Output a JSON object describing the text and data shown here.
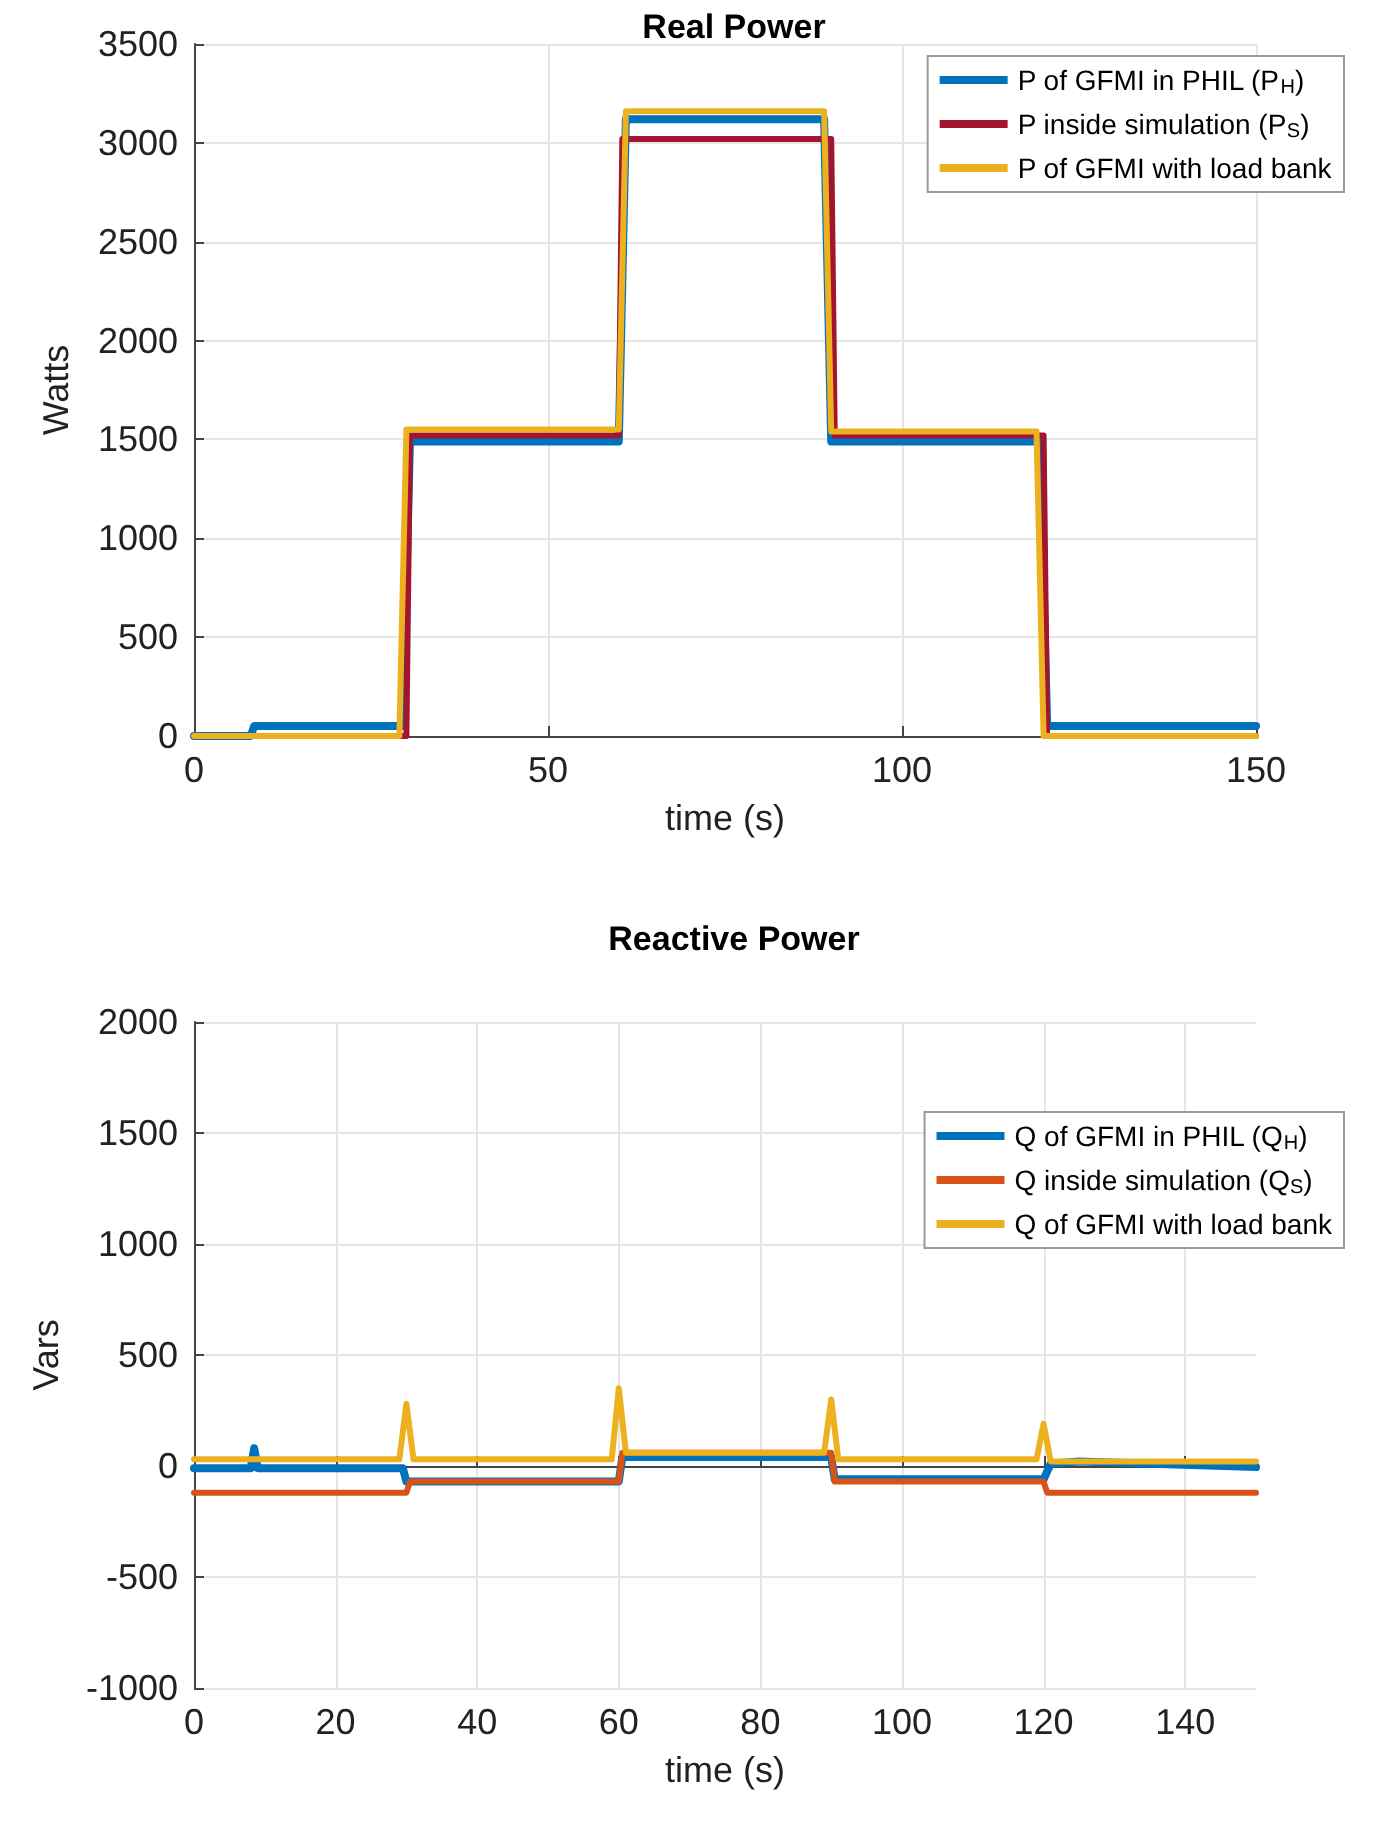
{
  "chart_data": [
    {
      "type": "line",
      "title": "Real Power",
      "xlabel": "time (s)",
      "ylabel": "Watts",
      "xlim": [
        0,
        150
      ],
      "xticks": [
        0,
        50,
        100,
        150
      ],
      "ylim": [
        0,
        3500
      ],
      "yticks": [
        0,
        500,
        1000,
        1500,
        2000,
        2500,
        3000,
        3500
      ],
      "grid": true,
      "legend": "top right",
      "marker": "none",
      "line_style": "solid",
      "series": [
        {
          "name": "P of GFMI in PHIL (P$_{H}$)",
          "color": "#0072bd",
          "x": [
            0,
            8,
            8.5,
            29.5,
            30.5,
            60,
            61,
            89,
            90,
            119.5,
            120.5,
            150
          ],
          "values": [
            0,
            0,
            50,
            50,
            1490,
            1490,
            3120,
            3120,
            1490,
            1490,
            50,
            50
          ]
        },
        {
          "name": "P inside simulation (P$_{S}$)",
          "color": "#a2142f",
          "x": [
            0,
            30,
            30.5,
            60,
            60.5,
            90,
            90.5,
            120,
            120.5,
            150
          ],
          "values": [
            0,
            0,
            1520,
            1520,
            3020,
            3020,
            1520,
            1520,
            0,
            0
          ]
        },
        {
          "name": "P of GFMI with load bank",
          "color": "#edb120",
          "x": [
            0,
            29,
            30,
            60,
            61,
            89,
            90,
            119,
            120,
            150
          ],
          "values": [
            0,
            0,
            1550,
            1550,
            3160,
            3160,
            1540,
            1540,
            0,
            0
          ]
        }
      ]
    },
    {
      "type": "line",
      "title": "Reactive Power",
      "xlabel": "time (s)",
      "ylabel": "Vars",
      "xlim": [
        0,
        150
      ],
      "xticks": [
        0,
        20,
        40,
        60,
        80,
        100,
        120,
        140
      ],
      "ylim": [
        -1000,
        2000
      ],
      "yticks": [
        -1000,
        -500,
        0,
        500,
        1000,
        1500,
        2000
      ],
      "grid": true,
      "legend": "top right",
      "marker": "none",
      "line_style": "solid",
      "series": [
        {
          "name": "Q of GFMI in PHIL (Q$_{H}$)",
          "color": "#0072bd",
          "x": [
            0,
            8,
            8.5,
            9,
            29.5,
            30,
            60,
            60.5,
            90,
            90.5,
            120,
            121,
            125,
            150
          ],
          "values": [
            -10,
            -10,
            80,
            -10,
            -10,
            -70,
            -70,
            40,
            40,
            -60,
            -60,
            10,
            20,
            -5
          ]
        },
        {
          "name": "Q inside simulation (Q$_{S}$)",
          "color": "#d95319",
          "x": [
            0,
            30,
            30.5,
            60,
            60.5,
            90,
            90.5,
            120,
            120.5,
            150
          ],
          "values": [
            -120,
            -120,
            -70,
            -70,
            60,
            60,
            -70,
            -70,
            -120,
            -120
          ]
        },
        {
          "name": "Q of GFMI with load bank",
          "color": "#edb120",
          "x": [
            0,
            29,
            30,
            31,
            59,
            60,
            61,
            89,
            90,
            91,
            119,
            120,
            121,
            122,
            150
          ],
          "values": [
            30,
            30,
            280,
            30,
            30,
            350,
            60,
            60,
            300,
            30,
            30,
            190,
            20,
            20,
            20
          ]
        }
      ]
    }
  ]
}
